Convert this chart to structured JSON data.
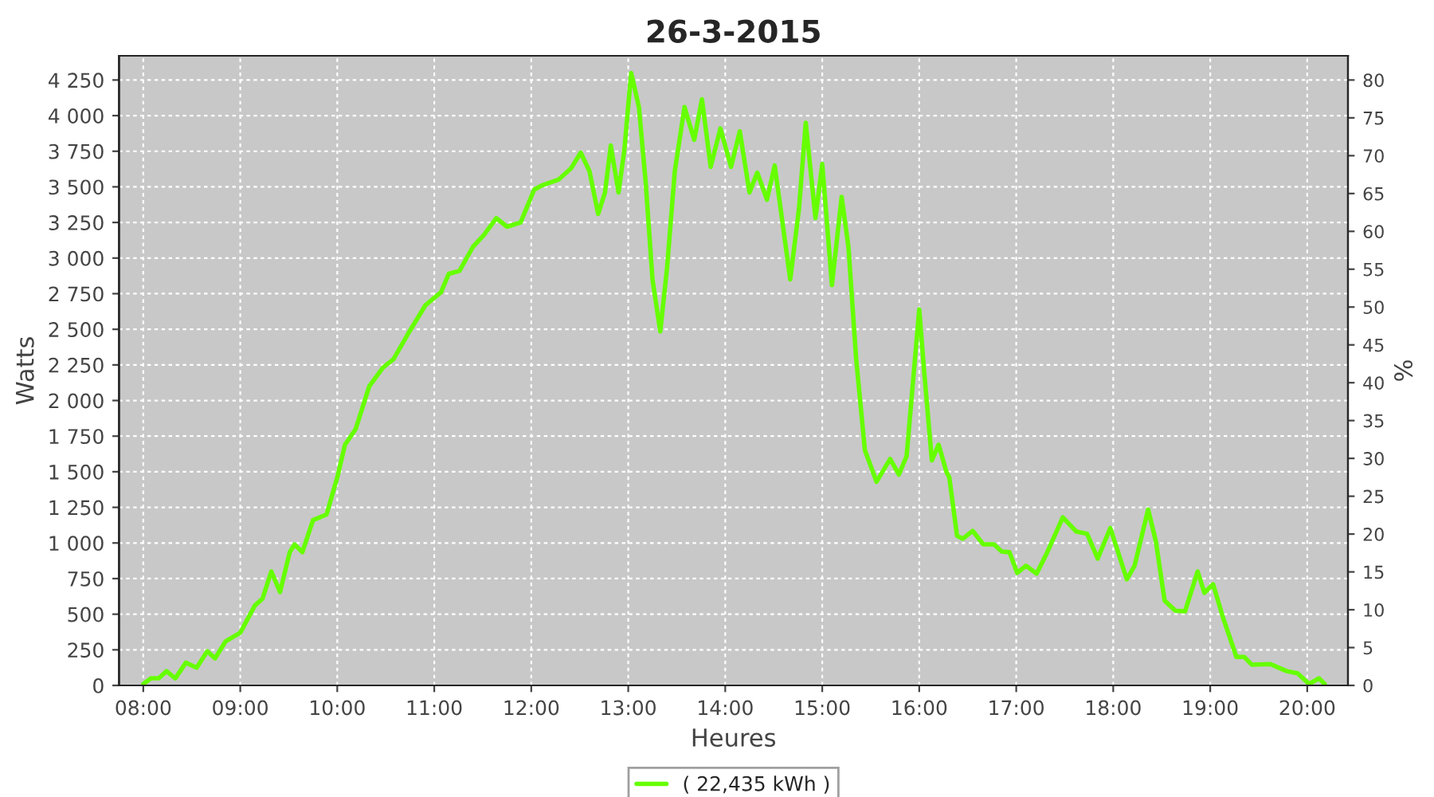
{
  "chart_data": {
    "type": "line",
    "title": "26-3-2015",
    "xlabel": "Heures",
    "ylabel": "Watts",
    "y2label": "%",
    "series": [
      {
        "name": "( 22,435 kWh )",
        "color": "#66ff00",
        "x": [
          8.0,
          8.08,
          8.16,
          8.24,
          8.33,
          8.44,
          8.55,
          8.66,
          8.74,
          8.85,
          9.0,
          9.15,
          9.23,
          9.32,
          9.41,
          9.51,
          9.56,
          9.64,
          9.75,
          9.89,
          10.0,
          10.08,
          10.19,
          10.33,
          10.47,
          10.58,
          10.74,
          10.91,
          11.07,
          11.15,
          11.26,
          11.4,
          11.51,
          11.64,
          11.75,
          11.89,
          12.03,
          12.11,
          12.28,
          12.41,
          12.51,
          12.6,
          12.69,
          12.76,
          12.82,
          12.9,
          12.96,
          13.03,
          13.11,
          13.18,
          13.25,
          13.33,
          13.4,
          13.48,
          13.58,
          13.68,
          13.76,
          13.85,
          13.95,
          14.06,
          14.15,
          14.25,
          14.33,
          14.43,
          14.51,
          14.67,
          14.76,
          14.83,
          14.93,
          15.0,
          15.1,
          15.2,
          15.27,
          15.35,
          15.44,
          15.56,
          15.7,
          15.79,
          15.87,
          16.0,
          16.05,
          16.13,
          16.2,
          16.28,
          16.31,
          16.39,
          16.45,
          16.55,
          16.66,
          16.77,
          16.85,
          16.93,
          17.01,
          17.1,
          17.21,
          17.32,
          17.48,
          17.62,
          17.73,
          17.84,
          17.97,
          18.14,
          18.22,
          18.36,
          18.44,
          18.53,
          18.64,
          18.74,
          18.87,
          18.94,
          19.03,
          19.13,
          19.27,
          19.35,
          19.43,
          19.62,
          19.79,
          19.9,
          20.02,
          20.12,
          20.18
        ],
        "values": [
          10,
          50,
          50,
          100,
          50,
          160,
          125,
          240,
          190,
          310,
          370,
          560,
          610,
          800,
          655,
          935,
          990,
          935,
          1160,
          1200,
          1460,
          1690,
          1800,
          2100,
          2230,
          2290,
          2480,
          2670,
          2760,
          2890,
          2910,
          3080,
          3160,
          3280,
          3220,
          3250,
          3480,
          3510,
          3550,
          3630,
          3740,
          3610,
          3310,
          3460,
          3790,
          3460,
          3760,
          4300,
          4060,
          3530,
          2850,
          2485,
          2930,
          3610,
          4060,
          3830,
          4115,
          3640,
          3910,
          3640,
          3890,
          3460,
          3600,
          3410,
          3650,
          2850,
          3345,
          3950,
          3280,
          3660,
          2810,
          3430,
          3080,
          2290,
          1650,
          1430,
          1590,
          1480,
          1610,
          2640,
          2210,
          1580,
          1690,
          1500,
          1460,
          1050,
          1030,
          1085,
          990,
          990,
          940,
          935,
          790,
          840,
          785,
          935,
          1180,
          1080,
          1065,
          890,
          1105,
          745,
          840,
          1235,
          1010,
          595,
          525,
          520,
          800,
          650,
          710,
          480,
          200,
          200,
          145,
          150,
          100,
          85,
          10,
          50,
          10
        ]
      }
    ],
    "xlim": [
      7.75,
      20.42
    ],
    "xticks": [
      {
        "value": 8,
        "label": "08:00"
      },
      {
        "value": 9,
        "label": "09:00"
      },
      {
        "value": 10,
        "label": "10:00"
      },
      {
        "value": 11,
        "label": "11:00"
      },
      {
        "value": 12,
        "label": "12:00"
      },
      {
        "value": 13,
        "label": "13:00"
      },
      {
        "value": 14,
        "label": "14:00"
      },
      {
        "value": 15,
        "label": "15:00"
      },
      {
        "value": 16,
        "label": "16:00"
      },
      {
        "value": 17,
        "label": "17:00"
      },
      {
        "value": 18,
        "label": "18:00"
      },
      {
        "value": 19,
        "label": "19:00"
      },
      {
        "value": 20,
        "label": "20:00"
      }
    ],
    "ylim": [
      0,
      4420
    ],
    "yticks": [
      0,
      250,
      500,
      750,
      {
        "value": 1000,
        "label": "1 000"
      },
      {
        "value": 1250,
        "label": "1 250"
      },
      {
        "value": 1500,
        "label": "1 500"
      },
      {
        "value": 1750,
        "label": "1 750"
      },
      {
        "value": 2000,
        "label": "2 000"
      },
      {
        "value": 2250,
        "label": "2 250"
      },
      {
        "value": 2500,
        "label": "2 500"
      },
      {
        "value": 2750,
        "label": "2 750"
      },
      {
        "value": 3000,
        "label": "3 000"
      },
      {
        "value": 3250,
        "label": "3 250"
      },
      {
        "value": 3500,
        "label": "3 500"
      },
      {
        "value": 3750,
        "label": "3 750"
      },
      {
        "value": 4000,
        "label": "4 000"
      },
      {
        "value": 4250,
        "label": "4 250"
      }
    ],
    "y2lim": [
      0,
      83.2
    ],
    "y2ticks": [
      0,
      5,
      10,
      15,
      20,
      25,
      30,
      35,
      40,
      45,
      50,
      55,
      60,
      65,
      70,
      75,
      80
    ],
    "grid": true,
    "legend": "bottom",
    "marker": "none",
    "line_style": "solid"
  }
}
